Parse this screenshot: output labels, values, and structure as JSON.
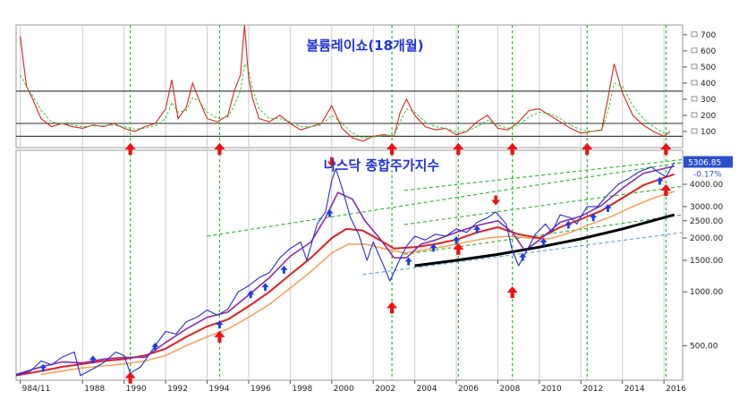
{
  "chart_data": [
    {
      "type": "line",
      "title": "볼륨레이쇼(18개월)",
      "ylim": [
        0,
        760
      ],
      "y_ticks": [
        100,
        200,
        300,
        400,
        500,
        600,
        700
      ],
      "reference_lines": [
        350,
        150,
        70
      ],
      "x": [
        1985.0,
        1985.3,
        1985.6,
        1986.0,
        1986.5,
        1987.0,
        1987.5,
        1988.0,
        1988.5,
        1989.0,
        1989.5,
        1990.0,
        1990.5,
        1991.0,
        1991.5,
        1992.0,
        1992.3,
        1992.6,
        1993.0,
        1993.3,
        1993.6,
        1994.0,
        1994.5,
        1995.0,
        1995.3,
        1995.6,
        1995.8,
        1996.0,
        1996.2,
        1996.5,
        1997.0,
        1997.5,
        1998.0,
        1998.5,
        1999.0,
        1999.5,
        2000.0,
        2000.5,
        2001.0,
        2001.5,
        2002.0,
        2002.5,
        2003.0,
        2003.3,
        2003.6,
        2004.0,
        2004.5,
        2005.0,
        2005.5,
        2006.0,
        2006.5,
        2007.0,
        2007.5,
        2008.0,
        2008.5,
        2009.0,
        2009.5,
        2010.0,
        2010.5,
        2011.0,
        2011.5,
        2012.0,
        2012.5,
        2013.0,
        2013.3,
        2013.6,
        2014.0,
        2014.5,
        2015.0,
        2015.5,
        2016.0,
        2016.3
      ],
      "series": [
        {
          "color": "#dd2222",
          "values": [
            690,
            380,
            300,
            180,
            130,
            150,
            130,
            120,
            140,
            130,
            150,
            120,
            100,
            130,
            150,
            240,
            420,
            180,
            250,
            400,
            300,
            180,
            160,
            200,
            350,
            450,
            760,
            430,
            300,
            180,
            160,
            200,
            150,
            110,
            130,
            150,
            260,
            120,
            60,
            40,
            70,
            80,
            70,
            220,
            300,
            200,
            130,
            110,
            120,
            80,
            100,
            160,
            200,
            120,
            110,
            160,
            230,
            240,
            200,
            160,
            120,
            90,
            100,
            110,
            300,
            520,
            340,
            200,
            140,
            100,
            70,
            100
          ]
        },
        {
          "color": "#33cc33",
          "values": [
            450,
            380,
            320,
            230,
            160,
            150,
            140,
            130,
            135,
            135,
            140,
            130,
            115,
            120,
            135,
            180,
            280,
            220,
            230,
            310,
            290,
            220,
            180,
            190,
            260,
            350,
            520,
            480,
            360,
            240,
            180,
            180,
            160,
            130,
            130,
            140,
            200,
            150,
            90,
            60,
            65,
            75,
            75,
            160,
            240,
            220,
            160,
            130,
            120,
            100,
            100,
            130,
            170,
            140,
            120,
            140,
            190,
            220,
            210,
            180,
            140,
            110,
            100,
            105,
            220,
            400,
            380,
            260,
            180,
            130,
            90,
            90
          ]
        }
      ]
    },
    {
      "type": "line",
      "title": "나스닥 종합주가지수",
      "xlim": [
        1984.8,
        2016.9
      ],
      "ylim": [
        320,
        6200
      ],
      "y_scale": "log",
      "x_ticks": [
        {
          "value": 1985.0,
          "label": "984/11"
        },
        {
          "value": 1988,
          "label": "1988"
        },
        {
          "value": 1990,
          "label": "1990"
        },
        {
          "value": 1992,
          "label": "1992"
        },
        {
          "value": 1994,
          "label": "1994"
        },
        {
          "value": 1996,
          "label": "1996"
        },
        {
          "value": 1998,
          "label": "1998"
        },
        {
          "value": 2000,
          "label": "2000"
        },
        {
          "value": 2002,
          "label": "2002"
        },
        {
          "value": 2004,
          "label": "2004"
        },
        {
          "value": 2006,
          "label": "2006"
        },
        {
          "value": 2008,
          "label": "2008"
        },
        {
          "value": 2010,
          "label": "2010"
        },
        {
          "value": 2012,
          "label": "2012"
        },
        {
          "value": 2014,
          "label": "2014"
        },
        {
          "value": 2016,
          "label": "2016"
        }
      ],
      "y_ticks": [
        {
          "value": 500,
          "label": "500.00"
        },
        {
          "value": 1000,
          "label": "1000.00"
        },
        {
          "value": 1500,
          "label": "1500.00"
        },
        {
          "value": 2000,
          "label": "2000.00"
        },
        {
          "value": 2500,
          "label": "2500.00"
        },
        {
          "value": 3000,
          "label": "3000.00"
        },
        {
          "value": 4000,
          "label": "4000.00"
        }
      ],
      "last_value_label": "5306.85",
      "change_label": "-0.17%",
      "last_value": 5306.85,
      "event_lines_x": [
        1990.3,
        1994.6,
        2002.9,
        2006.1,
        2008.7,
        2012.3,
        2016.1
      ],
      "red_up_arrows": [
        {
          "x": 1990.3,
          "panel": "ratio"
        },
        {
          "x": 1994.6,
          "panel": "ratio"
        },
        {
          "x": 2002.9,
          "panel": "ratio"
        },
        {
          "x": 2006.1,
          "panel": "ratio"
        },
        {
          "x": 2008.7,
          "panel": "ratio"
        },
        {
          "x": 2012.3,
          "panel": "ratio"
        },
        {
          "x": 2016.1,
          "panel": "ratio"
        },
        {
          "x": 1990.3,
          "y": 365
        },
        {
          "x": 1994.6,
          "y": 620
        },
        {
          "x": 2002.9,
          "y": 900
        },
        {
          "x": 2006.1,
          "y": 1920
        },
        {
          "x": 2008.7,
          "y": 1100
        },
        {
          "x": 2016.1,
          "y": 4100
        }
      ],
      "red_down_arrows": [
        {
          "x": 2000.0,
          "y": 5000
        },
        {
          "x": 2007.9,
          "y": 3050
        }
      ],
      "blue_up_arrows": [
        {
          "x": 1986.1,
          "y": 395
        },
        {
          "x": 1988.5,
          "y": 440
        },
        {
          "x": 1991.5,
          "y": 520
        },
        {
          "x": 1994.6,
          "y": 690
        },
        {
          "x": 1996.1,
          "y": 1020
        },
        {
          "x": 1996.8,
          "y": 1120
        },
        {
          "x": 1997.7,
          "y": 1400
        },
        {
          "x": 1999.9,
          "y": 2900
        },
        {
          "x": 2003.7,
          "y": 1560
        },
        {
          "x": 2004.9,
          "y": 1860
        },
        {
          "x": 2006.0,
          "y": 2050
        },
        {
          "x": 2007.0,
          "y": 2350
        },
        {
          "x": 2009.2,
          "y": 1650
        },
        {
          "x": 2010.2,
          "y": 2000
        },
        {
          "x": 2011.4,
          "y": 2500
        },
        {
          "x": 2012.6,
          "y": 2750
        },
        {
          "x": 2013.3,
          "y": 3100
        },
        {
          "x": 2015.8,
          "y": 4400
        }
      ],
      "series": [
        {
          "color": "#1f2fd0",
          "x": [
            1984.8,
            1985.5,
            1986.0,
            1986.5,
            1987.0,
            1987.6,
            1987.9,
            1988.5,
            1989.0,
            1989.6,
            1990.0,
            1990.3,
            1990.8,
            1991.5,
            1992.0,
            1992.5,
            1993.0,
            1993.5,
            1994.0,
            1994.5,
            1995.0,
            1995.5,
            1996.0,
            1996.5,
            1997.0,
            1997.5,
            1998.0,
            1998.5,
            1998.8,
            1999.3,
            1999.7,
            2000.0,
            2000.2,
            2000.5,
            2000.9,
            2001.3,
            2001.7,
            2002.0,
            2002.5,
            2002.8,
            2003.2,
            2003.6,
            2004.0,
            2004.5,
            2005.0,
            2005.5,
            2006.0,
            2006.5,
            2007.0,
            2007.5,
            2007.9,
            2008.4,
            2008.7,
            2009.0,
            2009.4,
            2009.8,
            2010.3,
            2010.6,
            2011.0,
            2011.5,
            2011.8,
            2012.3,
            2012.8,
            2013.3,
            2013.8,
            2014.3,
            2014.8,
            2015.4,
            2015.7,
            2016.1,
            2016.5
          ],
          "values": [
            340,
            360,
            410,
            390,
            430,
            460,
            340,
            370,
            400,
            460,
            440,
            350,
            380,
            500,
            600,
            580,
            680,
            720,
            790,
            740,
            800,
            1000,
            1080,
            1200,
            1280,
            1550,
            1750,
            1900,
            1500,
            2400,
            2800,
            4200,
            4900,
            3800,
            2600,
            2100,
            1500,
            1900,
            1400,
            1150,
            1450,
            1800,
            2050,
            1950,
            2100,
            2050,
            2250,
            2150,
            2450,
            2600,
            2800,
            2400,
            1700,
            1400,
            1700,
            2100,
            2400,
            2150,
            2700,
            2600,
            2400,
            3000,
            3000,
            3500,
            4000,
            4300,
            4700,
            5000,
            4700,
            4400,
            5306.85
          ]
        },
        {
          "color": "#8a2bb0",
          "x": [
            1984.8,
            1986.0,
            1987.0,
            1988.0,
            1989.0,
            1990.0,
            1991.0,
            1992.0,
            1993.0,
            1994.0,
            1995.0,
            1996.0,
            1997.0,
            1998.0,
            1999.0,
            1999.7,
            2000.3,
            2001.0,
            2001.6,
            2002.3,
            2003.0,
            2003.6,
            2004.3,
            2005.0,
            2006.0,
            2007.0,
            2008.0,
            2008.7,
            2009.3,
            2010.0,
            2011.0,
            2012.0,
            2013.0,
            2014.0,
            2015.0,
            2016.0,
            2016.5
          ],
          "values": [
            345,
            380,
            405,
            400,
            420,
            430,
            430,
            520,
            620,
            720,
            770,
            960,
            1200,
            1580,
            1900,
            2600,
            3600,
            3300,
            2500,
            2000,
            1550,
            1550,
            1850,
            1950,
            2150,
            2350,
            2500,
            2150,
            1700,
            1950,
            2450,
            2650,
            3050,
            3800,
            4600,
            4900,
            5050
          ]
        },
        {
          "color": "#e02020",
          "x": [
            1984.8,
            1986.0,
            1987.0,
            1988.0,
            1989.0,
            1990.0,
            1991.0,
            1992.0,
            1993.0,
            1994.0,
            1995.0,
            1996.0,
            1997.0,
            1998.0,
            1999.0,
            2000.0,
            2000.7,
            2001.5,
            2002.3,
            2003.0,
            2004.0,
            2005.0,
            2006.0,
            2007.0,
            2008.0,
            2009.0,
            2010.0,
            2011.0,
            2012.0,
            2013.0,
            2014.0,
            2015.0,
            2016.0,
            2016.5
          ],
          "values": [
            340,
            360,
            380,
            395,
            410,
            420,
            440,
            480,
            560,
            640,
            700,
            830,
            1000,
            1250,
            1550,
            2000,
            2250,
            2200,
            1950,
            1750,
            1780,
            1850,
            1960,
            2150,
            2300,
            2100,
            2000,
            2300,
            2550,
            2850,
            3350,
            3950,
            4350,
            4550
          ]
        },
        {
          "color": "#f7a35c",
          "x": [
            1986.0,
            1987.0,
            1988.0,
            1989.0,
            1990.0,
            1991.0,
            1992.0,
            1993.0,
            1994.0,
            1995.0,
            1996.0,
            1997.0,
            1998.0,
            1999.0,
            2000.0,
            2000.8,
            2001.6,
            2002.5,
            2003.5,
            2004.5,
            2005.5,
            2006.5,
            2007.5,
            2008.5,
            2009.5,
            2010.5,
            2011.5,
            2012.5,
            2013.5,
            2014.5,
            2015.5,
            2016.5
          ],
          "values": [
            345,
            360,
            375,
            385,
            395,
            410,
            440,
            500,
            560,
            620,
            720,
            850,
            1050,
            1300,
            1650,
            1850,
            1850,
            1750,
            1650,
            1720,
            1800,
            1900,
            2000,
            2050,
            2000,
            1980,
            2150,
            2400,
            2650,
            3000,
            3350,
            3650
          ]
        },
        {
          "color": "#000000",
          "x": [
            2004.0,
            2006.0,
            2008.0,
            2010.0,
            2012.0,
            2014.0,
            2016.5
          ],
          "values": [
            1400,
            1500,
            1620,
            1780,
            1980,
            2250,
            2700
          ]
        }
      ],
      "trend_lines": [
        {
          "color": "#33bb33",
          "x": [
            2003.5,
            2016.9
          ],
          "values": [
            3700,
            5500
          ]
        },
        {
          "color": "#33bb33",
          "x": [
            1994.0,
            2016.9
          ],
          "values": [
            2050,
            5300
          ]
        },
        {
          "color": "#33bb33",
          "x": [
            2003.5,
            2016.9
          ],
          "values": [
            2380,
            3900
          ]
        },
        {
          "color": "#33bb33",
          "x": [
            2003.5,
            2016.9
          ],
          "values": [
            1620,
            2700
          ]
        },
        {
          "color": "#66aadd",
          "x": [
            2001.5,
            2016.9
          ],
          "values": [
            1250,
            2150
          ]
        }
      ]
    }
  ]
}
